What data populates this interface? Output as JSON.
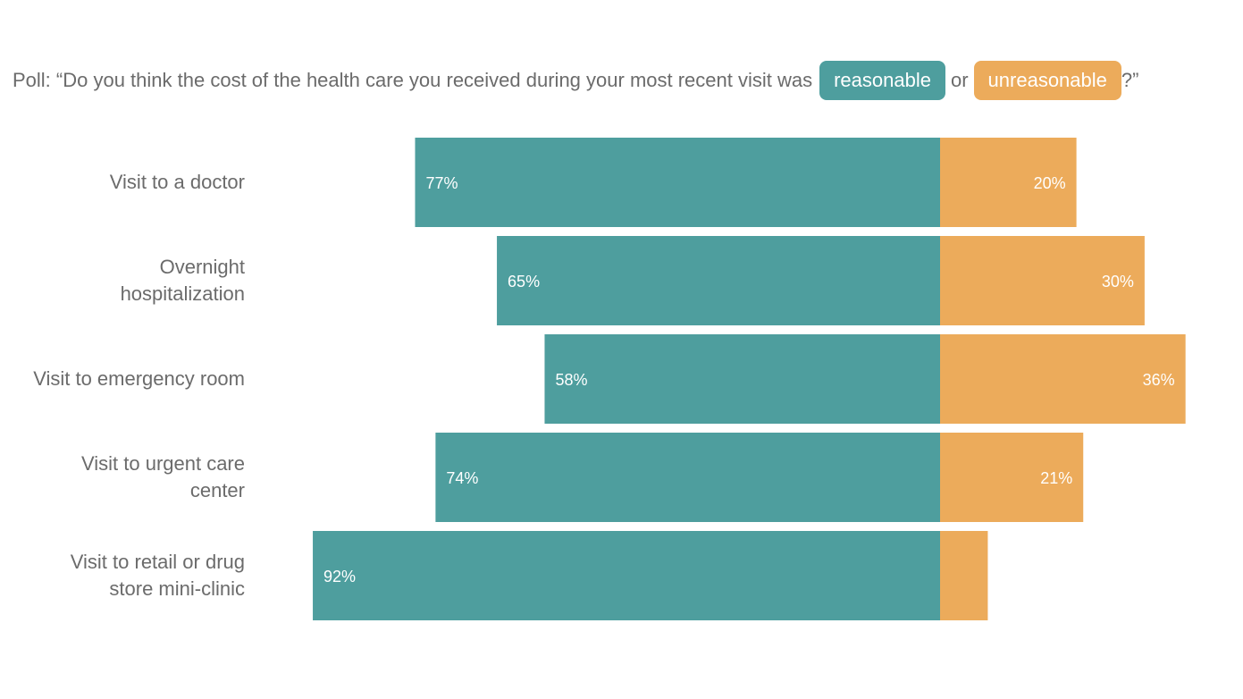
{
  "header": {
    "prefix": "Poll: “Do you think the cost of the health care you received during your most recent visit was",
    "middle": "or",
    "suffix": "?”"
  },
  "colors": {
    "reasonable": "#4e9e9e",
    "unreasonable": "#ecab5b",
    "text": "#6b6b6b"
  },
  "chart_data": {
    "type": "bar",
    "orientation": "horizontal-diverging",
    "categories": [
      "Visit to a doctor",
      "Overnight hospitalization",
      "Visit to emergency room",
      "Visit to urgent care center",
      "Visit to retail or drug store mini-clinic"
    ],
    "category_lines": [
      [
        "Visit to a doctor"
      ],
      [
        "Overnight",
        "hospitalization"
      ],
      [
        "Visit to emergency room"
      ],
      [
        "Visit to urgent care",
        "center"
      ],
      [
        "Visit to retail or drug",
        "store mini-clinic"
      ]
    ],
    "series": [
      {
        "name": "reasonable",
        "values": [
          77,
          65,
          58,
          74,
          92
        ],
        "labels": [
          "77%",
          "65%",
          "58%",
          "74%",
          "92%"
        ]
      },
      {
        "name": "unreasonable",
        "values": [
          20,
          30,
          36,
          21,
          7
        ],
        "labels": [
          "20%",
          "30%",
          "36%",
          "21%",
          ""
        ]
      }
    ],
    "unit": "%",
    "grid": false,
    "legend": "inline in title"
  }
}
